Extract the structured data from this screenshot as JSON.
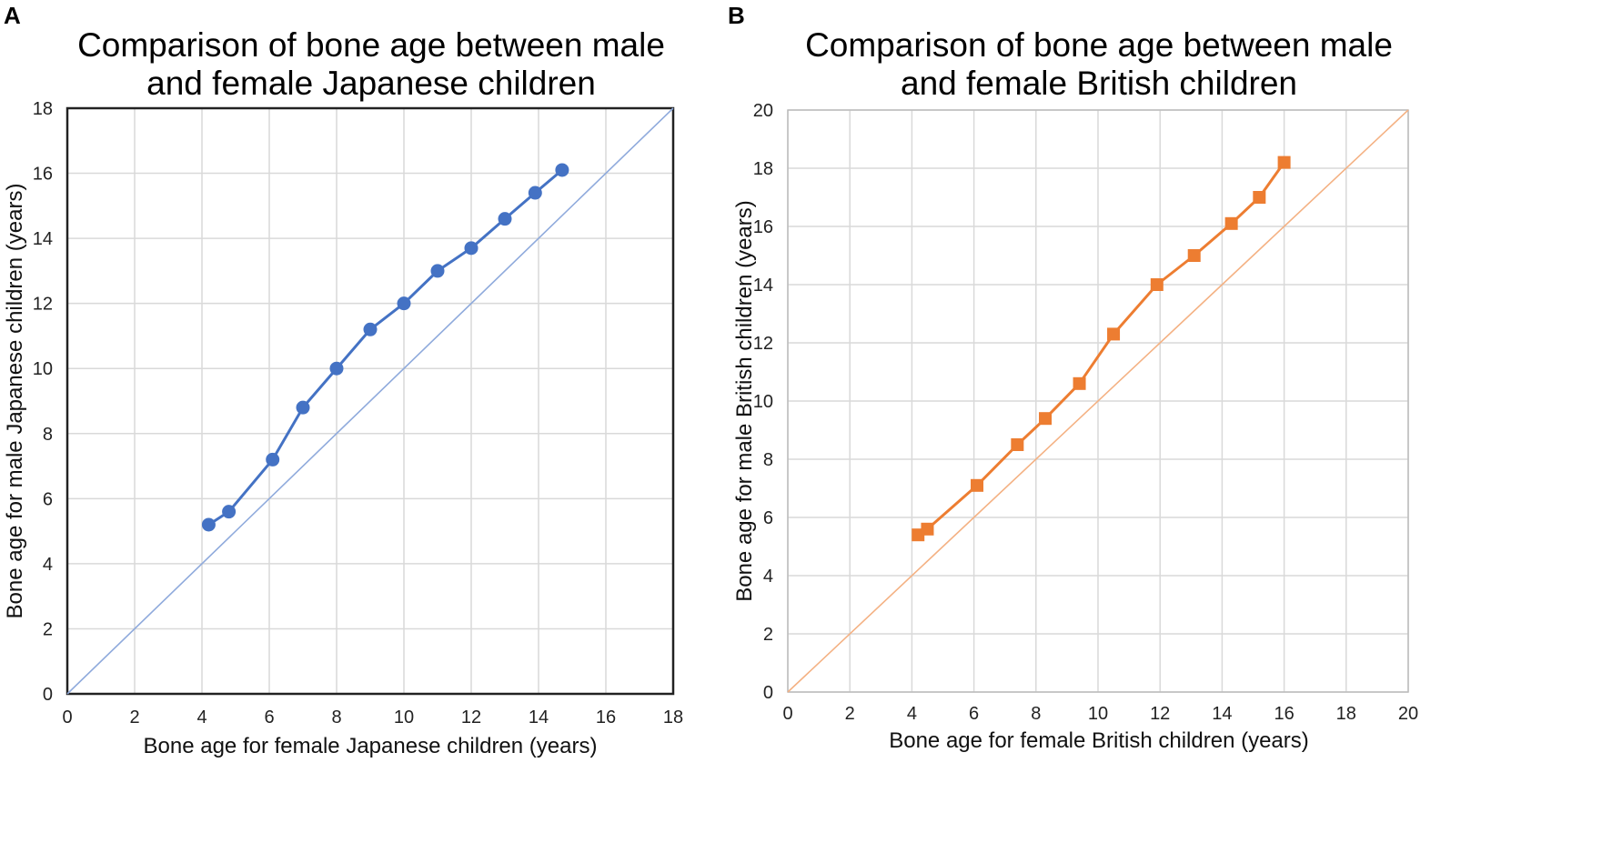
{
  "chart_data": [
    {
      "panel": "A",
      "type": "line",
      "title_lines": [
        "Comparison of bone age between male",
        "and female Japanese children"
      ],
      "xlabel": "Bone age for female Japanese children (years)",
      "ylabel": "Bone age for male Japanese children (years)",
      "xlim": [
        0,
        18
      ],
      "ylim": [
        0,
        18
      ],
      "xticks": [
        0,
        2,
        4,
        6,
        8,
        10,
        12,
        14,
        16,
        18
      ],
      "yticks": [
        0,
        2,
        4,
        6,
        8,
        10,
        12,
        14,
        16,
        18
      ],
      "grid": true,
      "marker": "circle",
      "color": "#4472C4",
      "reference_line": {
        "name": "y = x",
        "from": [
          0,
          0
        ],
        "to": [
          18,
          18
        ],
        "color": "#8FAADC"
      },
      "series": [
        {
          "name": "Japanese children",
          "x": [
            4.2,
            4.8,
            6.1,
            7.0,
            8.0,
            9.0,
            10.0,
            11.0,
            12.0,
            13.0,
            13.9,
            14.7
          ],
          "y": [
            5.2,
            5.6,
            7.2,
            8.8,
            10.0,
            11.2,
            12.0,
            13.0,
            13.7,
            14.6,
            15.4,
            16.1
          ]
        }
      ]
    },
    {
      "panel": "B",
      "type": "line",
      "title_lines": [
        "Comparison of bone age between male",
        "and female British children"
      ],
      "xlabel": "Bone age for female British children (years)",
      "ylabel": "Bone age for male British children (years)",
      "xlim": [
        0,
        20
      ],
      "ylim": [
        0,
        20
      ],
      "xticks": [
        0,
        2,
        4,
        6,
        8,
        10,
        12,
        14,
        16,
        18,
        20
      ],
      "yticks": [
        0,
        2,
        4,
        6,
        8,
        10,
        12,
        14,
        16,
        18,
        20
      ],
      "grid": true,
      "marker": "square",
      "color": "#ED7D31",
      "reference_line": {
        "name": "y = x",
        "from": [
          0,
          0
        ],
        "to": [
          20,
          20
        ],
        "color": "#F4B183"
      },
      "series": [
        {
          "name": "British children",
          "x": [
            4.2,
            4.5,
            6.1,
            7.4,
            8.3,
            9.4,
            10.5,
            11.9,
            13.1,
            14.3,
            15.2,
            16.0
          ],
          "y": [
            5.4,
            5.6,
            7.1,
            8.5,
            9.4,
            10.6,
            12.3,
            14.0,
            15.0,
            16.1,
            17.0,
            18.2
          ]
        }
      ]
    }
  ]
}
